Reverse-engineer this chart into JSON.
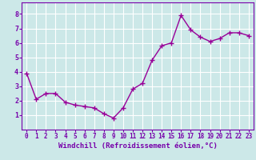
{
  "x": [
    0,
    1,
    2,
    3,
    4,
    5,
    6,
    7,
    8,
    9,
    10,
    11,
    12,
    13,
    14,
    15,
    16,
    17,
    18,
    19,
    20,
    21,
    22,
    23
  ],
  "y": [
    3.9,
    2.1,
    2.5,
    2.5,
    1.9,
    1.7,
    1.6,
    1.5,
    1.1,
    0.8,
    1.5,
    2.8,
    3.2,
    4.8,
    5.8,
    6.0,
    7.9,
    6.9,
    6.4,
    6.1,
    6.3,
    6.7,
    6.7,
    6.5
  ],
  "line_color": "#990099",
  "marker": "+",
  "marker_size": 4,
  "line_width": 1.0,
  "bg_color": "#cce8e8",
  "grid_color": "#ffffff",
  "tick_color": "#7700aa",
  "label_color": "#7700aa",
  "xlabel": "Windchill (Refroidissement éolien,°C)",
  "ylim": [
    0,
    8.8
  ],
  "xlim": [
    -0.5,
    23.5
  ],
  "yticks": [
    1,
    2,
    3,
    4,
    5,
    6,
    7,
    8
  ],
  "xticks": [
    0,
    1,
    2,
    3,
    4,
    5,
    6,
    7,
    8,
    9,
    10,
    11,
    12,
    13,
    14,
    15,
    16,
    17,
    18,
    19,
    20,
    21,
    22,
    23
  ],
  "xtick_labels": [
    "0",
    "1",
    "2",
    "3",
    "4",
    "5",
    "6",
    "7",
    "8",
    "9",
    "10",
    "11",
    "12",
    "13",
    "14",
    "15",
    "16",
    "17",
    "18",
    "19",
    "20",
    "21",
    "22",
    "23"
  ],
  "tick_fontsize": 5.5,
  "ylabel_fontsize": 6.5,
  "xlabel_fontsize": 6.5
}
